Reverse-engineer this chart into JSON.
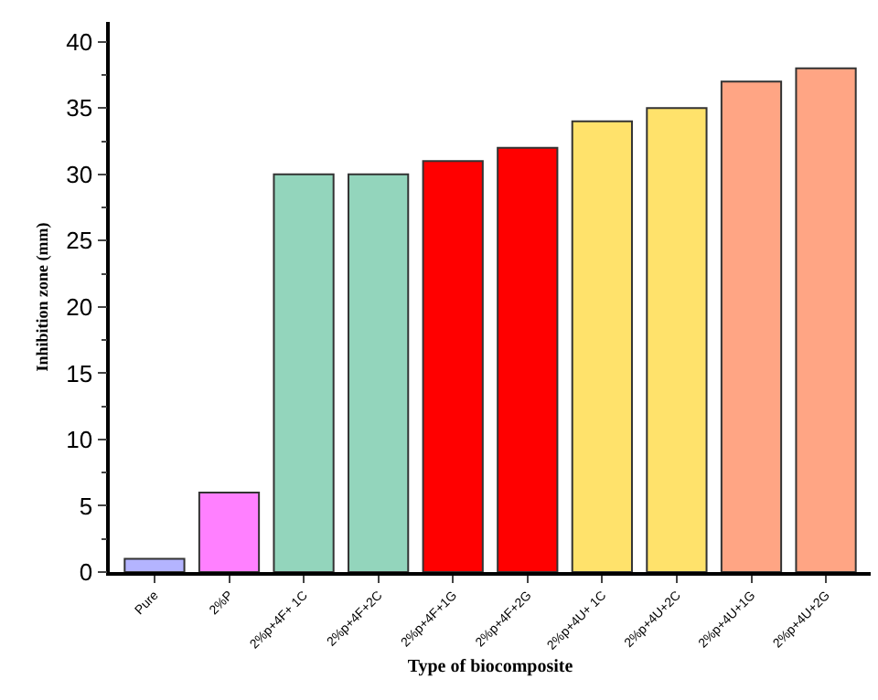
{
  "chart_data": {
    "type": "bar",
    "xlabel": "Type of biocomposite",
    "ylabel": "Inhibition zone (mm)",
    "categories": [
      "Pure",
      "2%P",
      "2%p+4F+ 1C",
      "2%p+4F+2C",
      "2%p+4F+1G",
      "2%p+4F+2G",
      "2%p+4U+ 1C",
      "2%p+4U+2C",
      "2%p+4U+1G",
      "2%p+4U+2G"
    ],
    "values": [
      1,
      6,
      30,
      30,
      31,
      32,
      34,
      35,
      37,
      38
    ],
    "colors": [
      "#b4b4ff",
      "#ff80ff",
      "#93d5bc",
      "#93d5bc",
      "#ff0000",
      "#ff0000",
      "#ffe26b",
      "#ffe26b",
      "#ffa584",
      "#ffa584"
    ],
    "ylim": [
      0,
      41.5
    ],
    "yticks": [
      0,
      5,
      10,
      15,
      20,
      25,
      30,
      35,
      40
    ]
  }
}
